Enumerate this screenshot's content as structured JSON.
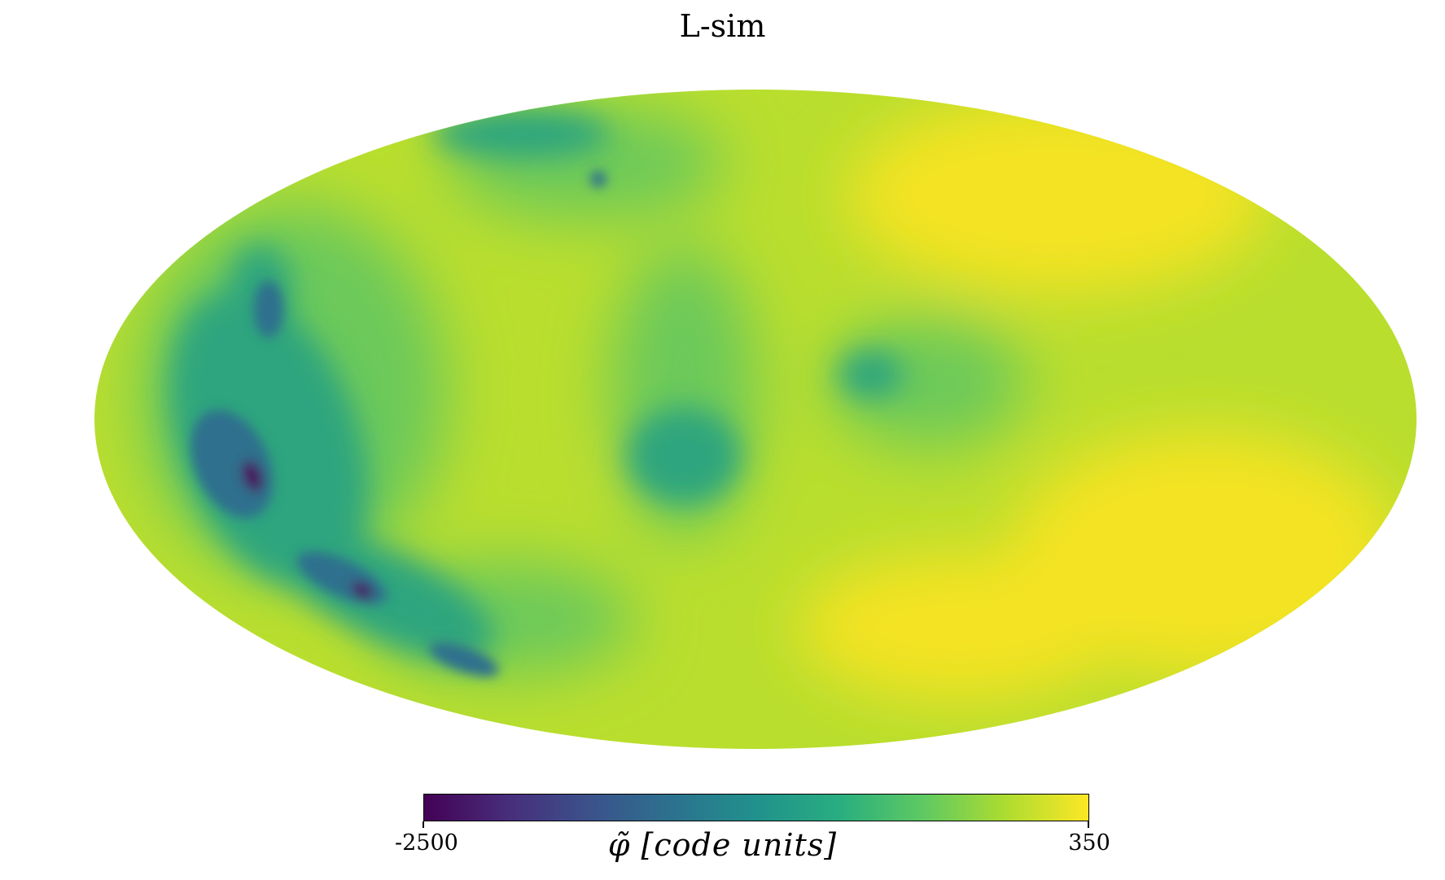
{
  "title": "L-sim",
  "projection": "mollweide",
  "colormap": {
    "name": "viridis",
    "min": -2500,
    "max": 350,
    "min_label": "-2500",
    "max_label": "350",
    "unit_label": "φ̃ [code units]",
    "stops": [
      "#440154",
      "#472d7b",
      "#3b528b",
      "#2c728e",
      "#21918c",
      "#28ae80",
      "#5ec962",
      "#addc30",
      "#fde725"
    ]
  },
  "map_colors": {
    "background": "#b9de2e",
    "bright_yellow": "#f4e320",
    "green": "#6cc95a",
    "teal": "#2fa57e",
    "blue": "#2d6f8e",
    "dark_purple": "#46175f"
  }
}
